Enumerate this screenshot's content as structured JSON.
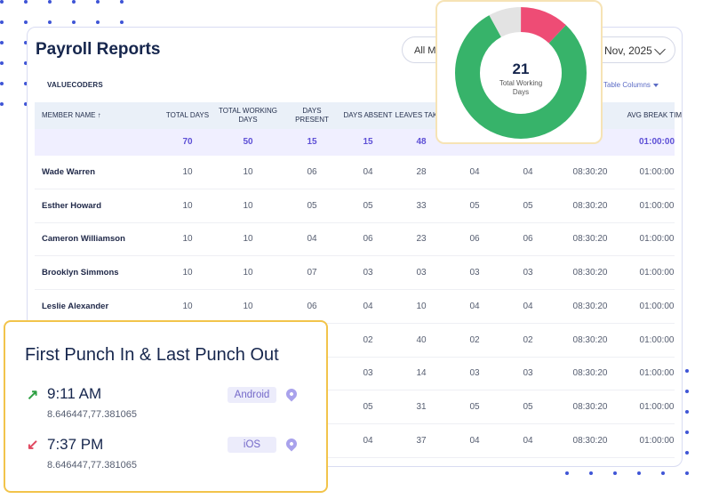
{
  "report": {
    "title": "Payroll Reports",
    "filter_label": "All M",
    "date_label": "Nov, 2025",
    "company": "VALUECODERS",
    "table_columns_label": "Table Columns"
  },
  "table": {
    "headers": [
      "MEMBER NAME ↑",
      "TOTAL DAYS",
      "TOTAL WORKING DAYS",
      "DAYS PRESENT",
      "DAYS ABSENT",
      "LEAVES TAKEN",
      "",
      "",
      "",
      "AVG BREAK TIME"
    ],
    "totals": [
      "",
      "70",
      "50",
      "15",
      "15",
      "48",
      "",
      "",
      "",
      "01:00:00"
    ],
    "rows": [
      [
        "Wade Warren",
        "10",
        "10",
        "06",
        "04",
        "28",
        "04",
        "04",
        "08:30:20",
        "01:00:00"
      ],
      [
        "Esther Howard",
        "10",
        "10",
        "05",
        "05",
        "33",
        "05",
        "05",
        "08:30:20",
        "01:00:00"
      ],
      [
        "Cameron Williamson",
        "10",
        "10",
        "04",
        "06",
        "23",
        "06",
        "06",
        "08:30:20",
        "01:00:00"
      ],
      [
        "Brooklyn Simmons",
        "10",
        "10",
        "07",
        "03",
        "03",
        "03",
        "03",
        "08:30:20",
        "01:00:00"
      ],
      [
        "Leslie Alexander",
        "10",
        "10",
        "06",
        "04",
        "10",
        "04",
        "04",
        "08:30:20",
        "01:00:00"
      ],
      [
        "",
        "",
        "",
        "",
        "02",
        "40",
        "02",
        "02",
        "08:30:20",
        "01:00:00"
      ],
      [
        "",
        "",
        "",
        "",
        "03",
        "14",
        "03",
        "03",
        "08:30:20",
        "01:00:00"
      ],
      [
        "",
        "",
        "",
        "",
        "05",
        "31",
        "05",
        "05",
        "08:30:20",
        "01:00:00"
      ],
      [
        "",
        "",
        "",
        "",
        "04",
        "37",
        "04",
        "04",
        "08:30:20",
        "01:00:00"
      ]
    ]
  },
  "donut": {
    "value": "21",
    "label_line1": "Total Working",
    "label_line2": "Days",
    "segments": [
      {
        "color": "#37b36a",
        "fraction": 0.8
      },
      {
        "color": "#e3e3e3",
        "fraction": 0.08
      },
      {
        "color": "#ee4c75",
        "fraction": 0.12
      }
    ]
  },
  "punch": {
    "title": "First Punch In & Last Punch Out",
    "in": {
      "time": "9:11 AM",
      "coords": "8.646447,77.381065",
      "device": "Android",
      "arrow": "↗",
      "color": "#2ea043"
    },
    "out": {
      "time": "7:37 PM",
      "coords": "8.646447,77.381065",
      "device": "iOS",
      "arrow": "↙",
      "color": "#e0475f"
    }
  }
}
